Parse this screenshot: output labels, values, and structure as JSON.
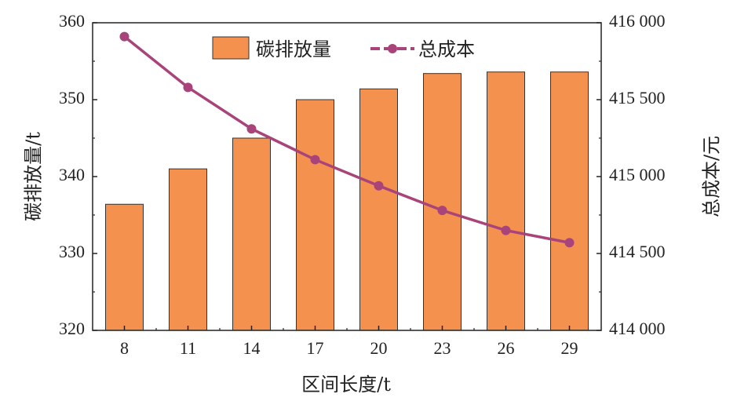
{
  "chart_data": {
    "type": "bar",
    "categories": [
      "8",
      "11",
      "14",
      "17",
      "20",
      "23",
      "26",
      "29"
    ],
    "xlabel": "区间长度/t",
    "ylabel": "碳排放量/t",
    "y2label": "总成本/元",
    "ylim": [
      320,
      360
    ],
    "y2lim": [
      414000,
      416000
    ],
    "yticks": [
      "320",
      "330",
      "340",
      "350",
      "360"
    ],
    "y2ticks": [
      "414 000",
      "414 500",
      "415 000",
      "415 500",
      "416 000"
    ],
    "series": [
      {
        "name": "碳排放量",
        "type": "bar",
        "axis": "left",
        "color": "#F4914F",
        "values": [
          336.4,
          341.0,
          345.0,
          350.0,
          351.4,
          353.4,
          353.6,
          353.6
        ]
      },
      {
        "name": "总成本",
        "type": "line",
        "axis": "right",
        "color": "#A8447A",
        "values": [
          415910,
          415580,
          415310,
          415110,
          414940,
          414780,
          414650,
          414570
        ]
      }
    ],
    "legend_position": "top-center",
    "grid": false
  }
}
